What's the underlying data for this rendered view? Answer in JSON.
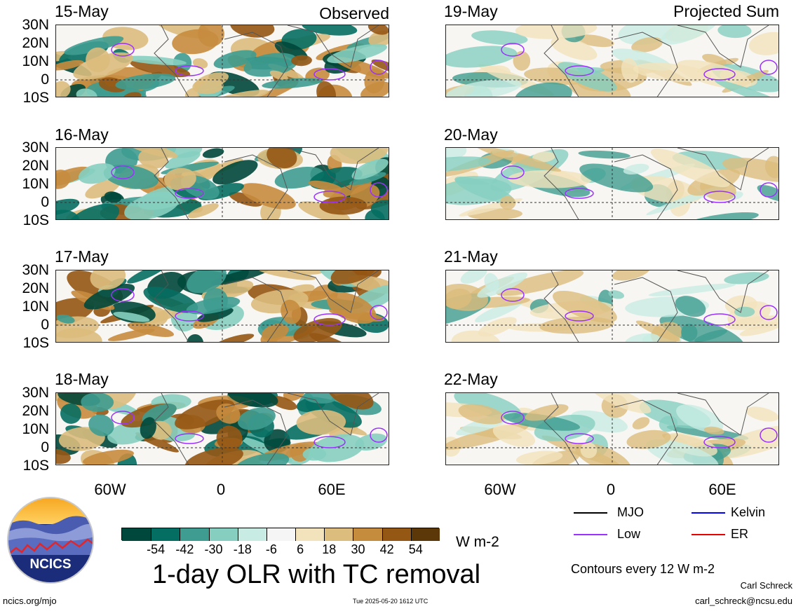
{
  "header": {
    "left_mode": "Observed",
    "right_mode": "Projected Sum"
  },
  "panels": {
    "left": [
      {
        "date": "15-May"
      },
      {
        "date": "16-May"
      },
      {
        "date": "17-May"
      },
      {
        "date": "18-May"
      }
    ],
    "right": [
      {
        "date": "19-May"
      },
      {
        "date": "20-May"
      },
      {
        "date": "21-May"
      },
      {
        "date": "22-May"
      }
    ]
  },
  "axes": {
    "lat_labels": [
      "30N",
      "20N",
      "10N",
      "0",
      "10S"
    ],
    "lon_labels": [
      "60W",
      "0",
      "60E"
    ]
  },
  "colorbar": {
    "colors": [
      "#00483b",
      "#056e62",
      "#3e9c90",
      "#86cfc0",
      "#c8ece3",
      "#f5f5f5",
      "#f3e3bd",
      "#dcbd7d",
      "#c68c3e",
      "#955714",
      "#5c3708"
    ],
    "labels": [
      "-54",
      "-42",
      "-30",
      "-18",
      "-6",
      "6",
      "18",
      "30",
      "42",
      "54"
    ],
    "units": "W m-2"
  },
  "legend": {
    "items": [
      {
        "label": "MJO",
        "color": "#000000"
      },
      {
        "label": "Kelvin",
        "color": "#0000ff"
      },
      {
        "label": "Low",
        "color": "#9b30ff"
      },
      {
        "label": "ER",
        "color": "#e60000"
      }
    ],
    "contours_note": "Contours every 12 W m-2"
  },
  "footer": {
    "logo_text": "NCICS",
    "title": "1-day OLR with TC removal",
    "url": "ncics.org/mjo",
    "timestamp": "Tue 2025-05-20 1612 UTC",
    "author": "Carl Schreck",
    "email": "carl_schreck@ncsu.edu"
  }
}
